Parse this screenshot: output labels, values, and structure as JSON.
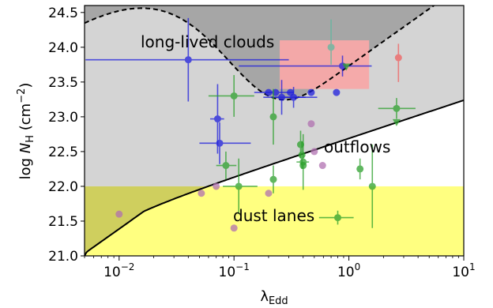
{
  "chart_data": {
    "type": "scatter",
    "xscale": "log",
    "xlim": [
      0.005,
      10
    ],
    "ylim": [
      21.0,
      24.6
    ],
    "xlabel": "λ",
    "xlabel_sub": "Edd",
    "ylabel_prefix": "log ",
    "ylabel_var": "N",
    "ylabel_sub": "H",
    "ylabel_unit": " (cm",
    "ylabel_exp": "−2",
    "ylabel_close": ")",
    "xticks": [
      {
        "value": 0.01,
        "base": "10",
        "exp": "−2"
      },
      {
        "value": 0.1,
        "base": "10",
        "exp": "−1"
      },
      {
        "value": 1,
        "base": "10",
        "exp": "0"
      },
      {
        "value": 10,
        "base": "10",
        "exp": "1"
      }
    ],
    "yticks": [
      "21.0",
      "21.5",
      "22.0",
      "22.5",
      "23.0",
      "23.5",
      "24.0",
      "24.5"
    ],
    "regions": {
      "long_lived_label": "long-lived clouds",
      "outflows_label": "outflows",
      "dust_lanes_label": "dust lanes",
      "dust_lane_ymax": 22.0,
      "red_box": {
        "x": [
          0.25,
          1.5
        ],
        "y": [
          23.4,
          24.1
        ]
      }
    },
    "colors": {
      "dark_region": "#a6a6a6",
      "light_region": "#d4d4d4",
      "yellow_region": "#ffff80",
      "overlap_region": "#cfcf5e",
      "red_box": "#f7a8a8",
      "blue": "#1f1fdd",
      "green": "#2ca02c",
      "purple": "#b070b0",
      "red": "#f06060",
      "teal": "#5fb8a0"
    },
    "series": [
      {
        "color_key": "blue",
        "points": [
          {
            "x": 0.04,
            "y": 23.82,
            "xerr": [
              0.035,
              0.26
            ],
            "yerr": [
              0.6,
              0.6
            ]
          },
          {
            "x": 0.072,
            "y": 22.97,
            "xerr": [
              0.01,
              0.01
            ],
            "yerr": [
              0.5,
              0.5
            ]
          },
          {
            "x": 0.075,
            "y": 22.62,
            "xerr": [
              0.025,
              0.065
            ],
            "yerr": [
              0.3,
              0.3
            ]
          },
          {
            "x": 0.2,
            "y": 23.35,
            "xerr": [
              0,
              0
            ],
            "yerr": [
              0,
              0
            ]
          },
          {
            "x": 0.23,
            "y": 23.35,
            "xerr": [
              0.08,
              0.1
            ],
            "yerr": [
              0,
              0
            ]
          },
          {
            "x": 0.26,
            "y": 23.28,
            "xerr": [
              0.08,
              0.16
            ],
            "yerr": [
              0.25,
              0.25
            ]
          },
          {
            "x": 0.31,
            "y": 23.35,
            "xerr": [
              0,
              0
            ],
            "yerr": [
              0,
              0
            ]
          },
          {
            "x": 0.33,
            "y": 23.28,
            "xerr": [
              0.1,
              0.2
            ],
            "yerr": [
              0.15,
              0.15
            ]
          },
          {
            "x": 0.47,
            "y": 23.35,
            "xerr": [
              0,
              0
            ],
            "yerr": [
              0,
              0
            ]
          },
          {
            "x": 0.78,
            "y": 23.35,
            "xerr": [
              0,
              0
            ],
            "yerr": [
              0,
              0
            ]
          },
          {
            "x": 0.88,
            "y": 23.73,
            "xerr": [
              0.77,
              0.7
            ],
            "yerr": [
              0.15,
              0.15
            ]
          }
        ]
      },
      {
        "color_key": "green",
        "points": [
          {
            "x": 0.1,
            "y": 23.3,
            "xerr": [
              0.04,
              0.05
            ],
            "yerr": [
              0.3,
              0.3
            ]
          },
          {
            "x": 0.085,
            "y": 22.3,
            "xerr": [
              0.015,
              0.02
            ],
            "yerr": [
              0.2,
              0.2
            ]
          },
          {
            "x": 0.11,
            "y": 22.0,
            "xerr": [
              0.03,
              0.05
            ],
            "yerr": [
              0.4,
              0.4
            ]
          },
          {
            "x": 0.22,
            "y": 23.0,
            "xerr": [
              0,
              0
            ],
            "yerr": [
              0.4,
              0.4
            ]
          },
          {
            "x": 0.22,
            "y": 22.1,
            "xerr": [
              0,
              0
            ],
            "yerr": [
              0.2,
              0.2
            ]
          },
          {
            "x": 0.38,
            "y": 22.6,
            "xerr": [
              0,
              0
            ],
            "yerr": [
              0.2,
              0.2
            ]
          },
          {
            "x": 0.39,
            "y": 22.45,
            "xerr": [
              0,
              0
            ],
            "yerr": [
              0.2,
              0.2
            ]
          },
          {
            "x": 0.4,
            "y": 22.35,
            "xerr": [
              0.05,
              0.05
            ],
            "yerr": [
              0.4,
              0.4
            ]
          },
          {
            "x": 0.4,
            "y": 22.3,
            "xerr": [
              0,
              0
            ],
            "yerr": [
              0,
              0
            ]
          },
          {
            "x": 1.25,
            "y": 22.25,
            "xerr": [
              0,
              0
            ],
            "yerr": [
              0.15,
              0.15
            ]
          },
          {
            "x": 1.6,
            "y": 22.0,
            "xerr": [
              0,
              0
            ],
            "yerr": [
              0.6,
              0.6
            ]
          },
          {
            "x": 2.6,
            "y": 23.12,
            "xerr": [
              0.8,
              1.2
            ],
            "yerr": [
              0.15,
              0.15
            ]
          },
          {
            "x": 0.8,
            "y": 21.55,
            "xerr": [
              0.25,
              0.3
            ],
            "yerr": [
              0.1,
              0.1
            ]
          }
        ]
      },
      {
        "color_key": "green",
        "marker": "triangle",
        "points": [
          {
            "x": 0.95,
            "y": 23.72
          },
          {
            "x": 2.6,
            "y": 22.92
          }
        ]
      },
      {
        "color_key": "purple",
        "points": [
          {
            "x": 0.01,
            "y": 21.6
          },
          {
            "x": 0.052,
            "y": 21.9
          },
          {
            "x": 0.07,
            "y": 22.0
          },
          {
            "x": 0.1,
            "y": 21.4
          },
          {
            "x": 0.2,
            "y": 21.9
          },
          {
            "x": 0.47,
            "y": 22.9
          },
          {
            "x": 0.5,
            "y": 22.5
          },
          {
            "x": 0.59,
            "y": 22.3
          }
        ]
      },
      {
        "color_key": "red",
        "points": [
          {
            "x": 2.7,
            "y": 23.85,
            "xerr": [
              0,
              0
            ],
            "yerr": [
              0.35,
              0.2
            ]
          }
        ]
      },
      {
        "color_key": "teal",
        "points": [
          {
            "x": 0.7,
            "y": 24.0,
            "xerr": [
              0,
              0
            ],
            "yerr": [
              0.25,
              0.4
            ]
          }
        ]
      }
    ]
  }
}
